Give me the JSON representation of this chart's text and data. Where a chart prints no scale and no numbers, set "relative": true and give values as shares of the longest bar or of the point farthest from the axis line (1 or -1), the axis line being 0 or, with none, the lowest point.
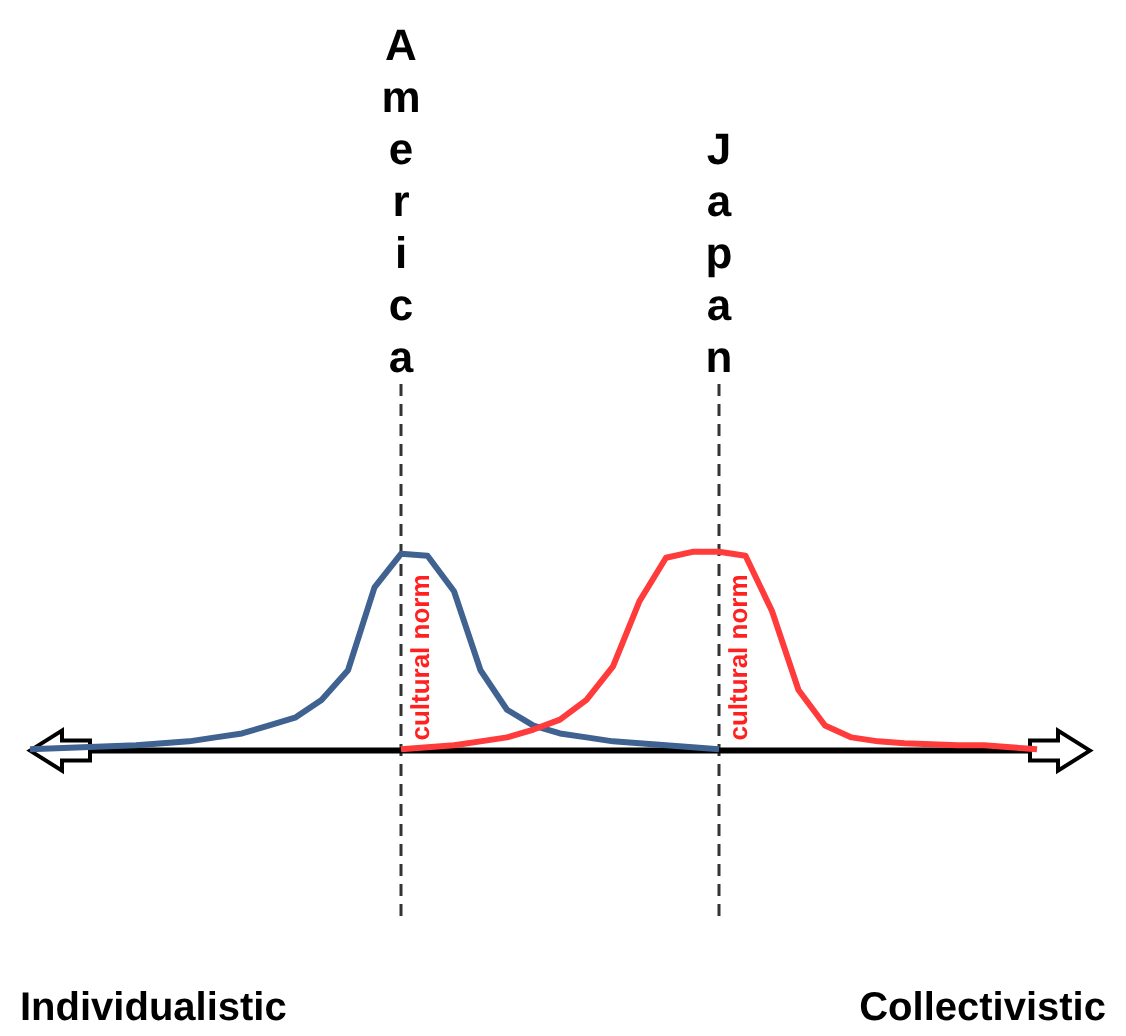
{
  "chart_data": {
    "type": "line",
    "relative": true,
    "grid": false,
    "legend": false,
    "line_style": "solid",
    "marker": "none",
    "categories": [
      null,
      null,
      null,
      null,
      null,
      null,
      null,
      null,
      null,
      null,
      null,
      null,
      null,
      null,
      null,
      null,
      null,
      null,
      null,
      null,
      null,
      null,
      null,
      null,
      null,
      null,
      null,
      null,
      null,
      null,
      null,
      null,
      null,
      null,
      null,
      null,
      null,
      null,
      null,
      null,
      null
    ],
    "series": [
      {
        "color": "#3f6290",
        "values": [
          0,
          0.005,
          0.01,
          0.015,
          0.02,
          0.03,
          0.04,
          0.06,
          0.08,
          0.12,
          0.16,
          0.25,
          0.4,
          0.82,
          0.99,
          0.98,
          0.8,
          0.4,
          0.2,
          0.12,
          0.08,
          0.06,
          0.04,
          0.03,
          0.02,
          0.01,
          0,
          null,
          null,
          null,
          null,
          null,
          null,
          null,
          null,
          null,
          null,
          null,
          null,
          null,
          null
        ]
      },
      {
        "color": "#ff3b3b",
        "values": [
          null,
          null,
          null,
          null,
          null,
          null,
          null,
          null,
          null,
          null,
          null,
          null,
          null,
          null,
          0,
          0.01,
          0.02,
          0.04,
          0.06,
          0.1,
          0.15,
          0.25,
          0.42,
          0.75,
          0.97,
          1,
          1,
          0.98,
          0.7,
          0.3,
          0.12,
          0.06,
          0.04,
          0.03,
          0.025,
          0.02,
          0.02,
          0.01,
          0,
          null,
          null
        ]
      }
    ],
    "annotations": [
      "Individualistic",
      "Collectivistic",
      "America",
      "Japan",
      "cultural norm",
      "cultural norm"
    ]
  }
}
